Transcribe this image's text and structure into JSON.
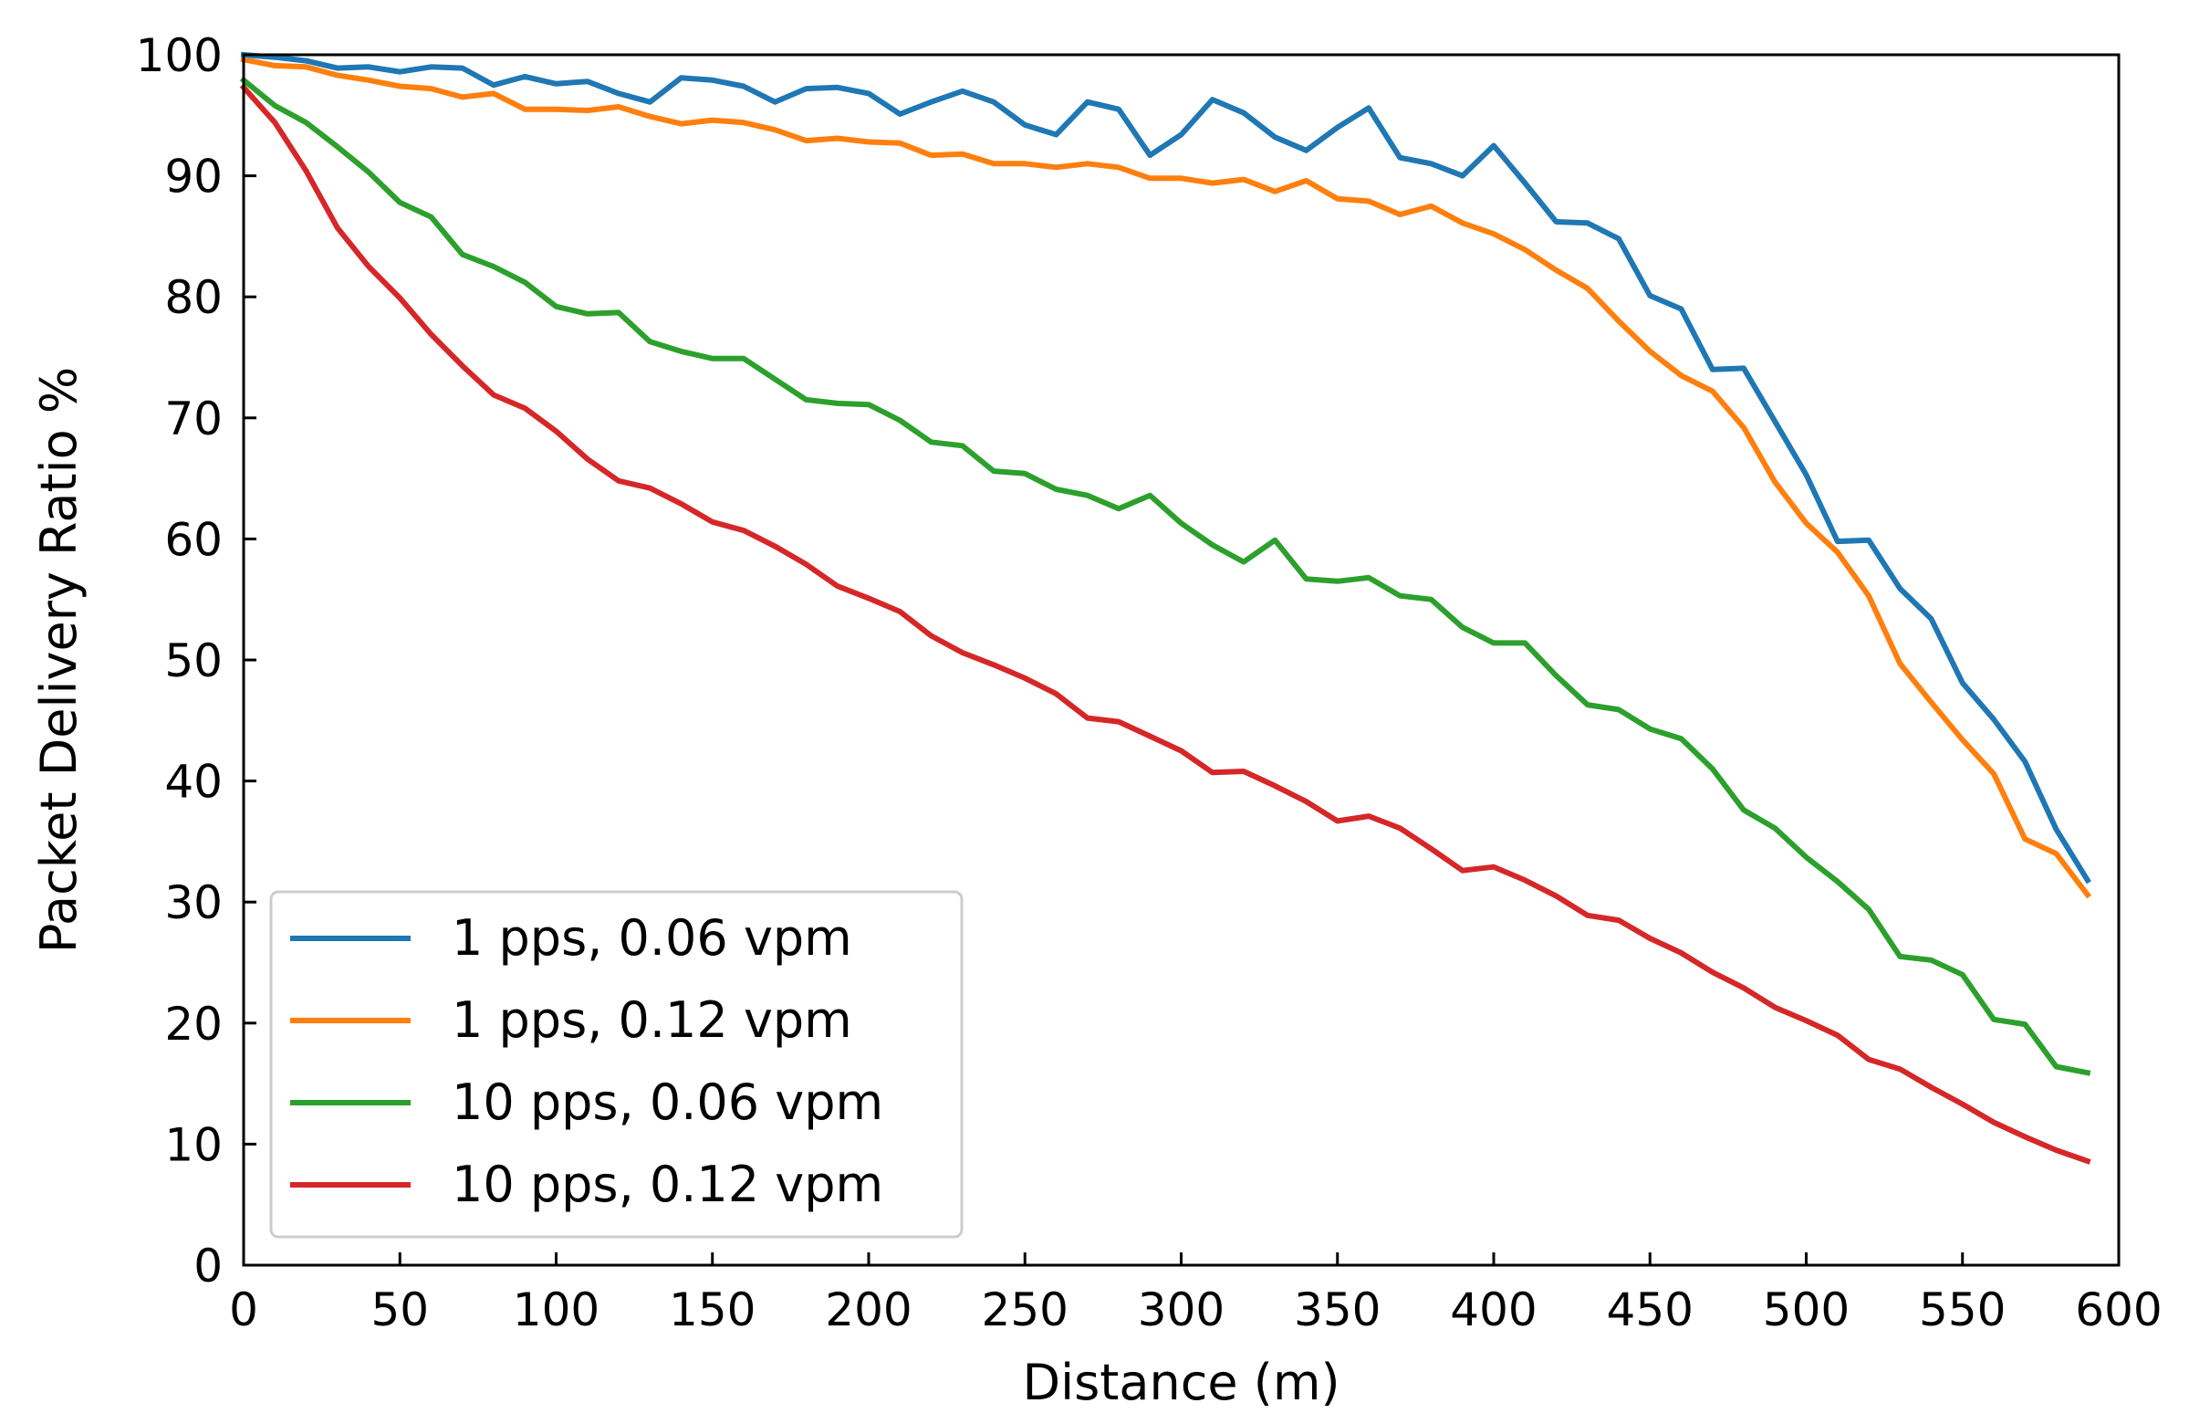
{
  "chart_data": {
    "type": "line",
    "title": "",
    "xlabel": "Distance (m)",
    "ylabel": "Packet Delivery Ratio %",
    "xlim": [
      0,
      600
    ],
    "ylim": [
      0,
      100
    ],
    "xticks": [
      0,
      50,
      100,
      150,
      200,
      250,
      300,
      350,
      400,
      450,
      500,
      550,
      600
    ],
    "yticks": [
      0,
      10,
      20,
      30,
      40,
      50,
      60,
      70,
      80,
      90,
      100
    ],
    "grid": false,
    "legend_position": "lower-left",
    "x": [
      0,
      10,
      20,
      30,
      40,
      50,
      60,
      70,
      80,
      90,
      100,
      110,
      120,
      130,
      140,
      150,
      160,
      170,
      180,
      190,
      200,
      210,
      220,
      230,
      240,
      250,
      260,
      270,
      280,
      290,
      300,
      310,
      320,
      330,
      340,
      350,
      360,
      370,
      380,
      390,
      400,
      410,
      420,
      430,
      440,
      450,
      460,
      470,
      480,
      490,
      500,
      510,
      520,
      530,
      540,
      550,
      560,
      570,
      580,
      590
    ],
    "series": [
      {
        "name": "1 pps, 0.06 vpm",
        "color": "#1f77b4",
        "values": [
          100,
          99.8,
          99.5,
          98.9,
          99,
          98.6,
          99,
          98.9,
          97.5,
          98.2,
          97.6,
          97.8,
          96.8,
          96.1,
          98.1,
          97.9,
          97.4,
          96.1,
          97.2,
          97.3,
          96.8,
          95.1,
          96.1,
          97,
          96.1,
          94.2,
          93.4,
          96.1,
          95.5,
          91.7,
          93.4,
          96.3,
          95.2,
          93.2,
          92.1,
          94,
          95.6,
          91.5,
          91,
          90,
          92.5,
          89.4,
          86.2,
          86.1,
          84.8,
          80.1,
          79,
          74,
          74.1,
          69.7,
          65.3,
          59.8,
          59.9,
          55.9,
          53.4,
          48.1,
          45.1,
          41.6,
          36,
          31.8
        ]
      },
      {
        "name": "1 pps, 0.12 vpm",
        "color": "#ff7f0e",
        "values": [
          99.6,
          99.1,
          99,
          98.3,
          97.9,
          97.4,
          97.2,
          96.5,
          96.8,
          95.5,
          95.5,
          95.4,
          95.7,
          94.9,
          94.3,
          94.6,
          94.4,
          93.8,
          92.9,
          93.1,
          92.8,
          92.7,
          91.7,
          91.8,
          91,
          91,
          90.7,
          91,
          90.7,
          89.8,
          89.8,
          89.4,
          89.7,
          88.7,
          89.6,
          88.1,
          87.9,
          86.8,
          87.5,
          86.1,
          85.2,
          83.9,
          82.2,
          80.7,
          78,
          75.5,
          73.5,
          72.2,
          69.2,
          64.7,
          61.3,
          58.9,
          55.3,
          49.7,
          46.5,
          43.4,
          40.6,
          35.2,
          34,
          30.6
        ]
      },
      {
        "name": "10 pps, 0.06 vpm",
        "color": "#2ca02c",
        "values": [
          97.9,
          95.8,
          94.4,
          92.4,
          90.3,
          87.8,
          86.6,
          83.5,
          82.5,
          81.2,
          79.2,
          78.6,
          78.7,
          76.3,
          75.5,
          74.9,
          74.9,
          73.2,
          71.5,
          71.2,
          71.1,
          69.8,
          68,
          67.7,
          65.6,
          65.4,
          64.1,
          63.6,
          62.5,
          63.6,
          61.3,
          59.5,
          58.1,
          59.9,
          56.7,
          56.5,
          56.8,
          55.3,
          55,
          52.7,
          51.4,
          51.4,
          48.7,
          46.3,
          45.9,
          44.3,
          43.5,
          41,
          37.6,
          36.1,
          33.7,
          31.7,
          29.4,
          25.5,
          25.2,
          24,
          20.3,
          19.9,
          16.4,
          15.9
        ]
      },
      {
        "name": "10 pps, 0.12 vpm",
        "color": "#d62728",
        "values": [
          97.3,
          94.4,
          90.4,
          85.7,
          82.5,
          79.9,
          76.9,
          74.3,
          71.9,
          70.8,
          68.9,
          66.6,
          64.8,
          64.2,
          62.9,
          61.4,
          60.7,
          59.4,
          57.9,
          56.1,
          55.1,
          54,
          52,
          50.6,
          49.6,
          48.5,
          47.2,
          45.2,
          44.9,
          43.7,
          42.5,
          40.7,
          40.8,
          39.6,
          38.3,
          36.7,
          37.1,
          36.1,
          34.4,
          32.6,
          32.9,
          31.8,
          30.5,
          28.9,
          28.5,
          27,
          25.8,
          24.2,
          22.9,
          21.3,
          20.2,
          19,
          17,
          16.2,
          14.7,
          13.3,
          11.8,
          10.6,
          9.5,
          8.6
        ]
      }
    ]
  }
}
